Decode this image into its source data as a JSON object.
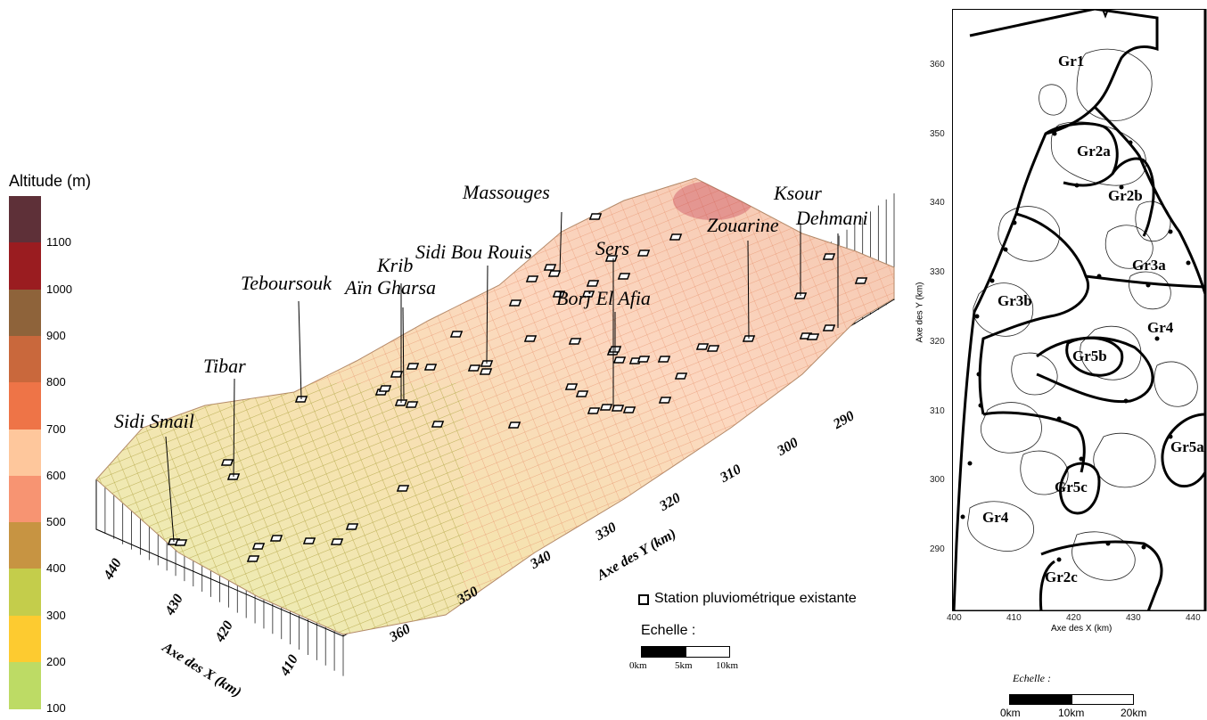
{
  "legend": {
    "title": "Altitude (m)",
    "ticks": [
      "1100",
      "1000",
      "900",
      "800",
      "700",
      "600",
      "500",
      "400",
      "300",
      "200",
      "100"
    ],
    "colors": [
      "#5e3038",
      "#9a1c20",
      "#8e633a",
      "#c9683c",
      "#ee7447",
      "#fec79c",
      "#f79472",
      "#c79442",
      "#c4cd4b",
      "#fdcb30",
      "#bddb65"
    ]
  },
  "stations": [
    "Massouges",
    "Ksour",
    "Dehmani",
    "Zouarine",
    "Sers",
    "Krib",
    "Sidi Bou Rouis",
    "Aïn Gharsa",
    "Teboursouk",
    "Borj El Afia",
    "Tibar",
    "Sidi Smail"
  ],
  "axis3d": {
    "x_label": "Axe des X (km)",
    "y_label": "Axe des Y (km)",
    "x_ticks": [
      "440",
      "430",
      "420",
      "410"
    ],
    "y_ticks": [
      "360",
      "350",
      "340",
      "330",
      "320",
      "310",
      "300",
      "290"
    ]
  },
  "station_legend": "Station pluviométrique existante",
  "scale1": {
    "title": "Echelle :",
    "labels": [
      "0km",
      "5km",
      "10km"
    ]
  },
  "map": {
    "groups": [
      {
        "label": "Gr1",
        "color": "#2a8a3e"
      },
      {
        "label": "Gr2a",
        "color": "#4a5fa8"
      },
      {
        "label": "Gr2b",
        "color": "#4a5fa8"
      },
      {
        "label": "Gr3a",
        "color": "#e33a3a"
      },
      {
        "label": "Gr3b",
        "color": "#e33a3a"
      },
      {
        "label": "Gr4",
        "color": "#111111"
      },
      {
        "label": "Gr5b",
        "color": "#8a1e2a"
      },
      {
        "label": "Gr5a",
        "color": "#8a1e2a"
      },
      {
        "label": "Gr5c",
        "color": "#8a1e2a"
      },
      {
        "label": "Gr4",
        "color": "#111111"
      },
      {
        "label": "Gr2c",
        "color": "#4a5fa8"
      }
    ],
    "y_ticks": [
      "360",
      "350",
      "340",
      "330",
      "320",
      "310",
      "300",
      "290"
    ],
    "x_ticks": [
      "400",
      "410",
      "420",
      "430",
      "440"
    ],
    "x_label": "Axe des X (km)",
    "y_label": "Axe des Y (km)"
  },
  "scale2": {
    "title": "Echelle :",
    "labels": [
      "0km",
      "10km",
      "20km"
    ]
  }
}
